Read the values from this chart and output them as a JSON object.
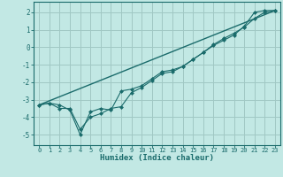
{
  "xlabel": "Humidex (Indice chaleur)",
  "ylabel": "",
  "xlim": [
    -0.5,
    23.5
  ],
  "ylim": [
    -5.6,
    2.6
  ],
  "yticks": [
    -5,
    -4,
    -3,
    -2,
    -1,
    0,
    1,
    2
  ],
  "xticks": [
    0,
    1,
    2,
    3,
    4,
    5,
    6,
    7,
    8,
    9,
    10,
    11,
    12,
    13,
    14,
    15,
    16,
    17,
    18,
    19,
    20,
    21,
    22,
    23
  ],
  "bg_color": "#c2e8e4",
  "grid_color": "#a0c8c4",
  "line_color": "#1a6b6b",
  "line1_x": [
    0,
    1,
    2,
    3,
    4,
    5,
    6,
    7,
    8,
    9,
    10,
    11,
    12,
    13,
    14,
    15,
    16,
    17,
    18,
    19,
    20,
    21,
    22,
    23
  ],
  "line1_y": [
    -3.3,
    -3.2,
    -3.5,
    -3.5,
    -4.7,
    -4.0,
    -3.8,
    -3.5,
    -3.4,
    -2.6,
    -2.3,
    -1.9,
    -1.5,
    -1.4,
    -1.1,
    -0.7,
    -0.3,
    0.1,
    0.4,
    0.7,
    1.2,
    2.0,
    2.1,
    2.1
  ],
  "line2_x": [
    0,
    1,
    2,
    3,
    4,
    5,
    6,
    7,
    8,
    9,
    10,
    11,
    12,
    13,
    14,
    15,
    16,
    17,
    18,
    19,
    20,
    21,
    22,
    23
  ],
  "line2_y": [
    -3.3,
    -3.2,
    -3.3,
    -3.6,
    -5.0,
    -3.7,
    -3.5,
    -3.6,
    -2.5,
    -2.4,
    -2.2,
    -1.8,
    -1.4,
    -1.3,
    -1.1,
    -0.7,
    -0.3,
    0.15,
    0.5,
    0.8,
    1.15,
    1.65,
    2.0,
    2.1
  ],
  "line3_x": [
    0,
    23
  ],
  "line3_y": [
    -3.3,
    2.1
  ],
  "marker": "D",
  "markersize": 2.5
}
